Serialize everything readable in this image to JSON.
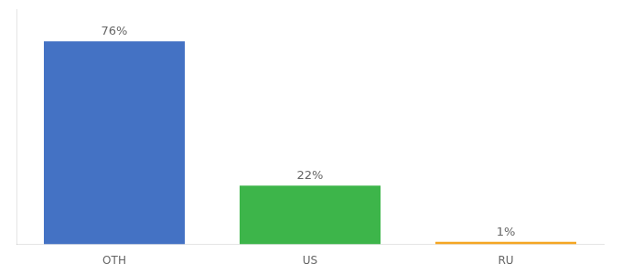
{
  "chart_data": {
    "type": "bar",
    "categories": [
      "OTH",
      "US",
      "RU"
    ],
    "values": [
      76,
      22,
      1
    ],
    "value_labels": [
      "76%",
      "22%",
      "1%"
    ],
    "data_labels": true,
    "colors": [
      "#4472c4",
      "#3db54a",
      "#f5a623"
    ],
    "ylim": [
      0,
      88
    ],
    "tick_labels": "x",
    "grid": false
  }
}
